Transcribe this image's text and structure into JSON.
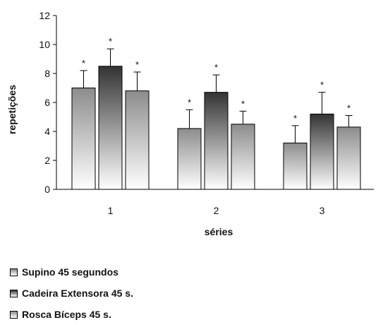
{
  "chart_data": {
    "type": "bar",
    "title": "",
    "xlabel": "séries",
    "ylabel": "repetições",
    "categories": [
      "1",
      "2",
      "3"
    ],
    "ylim": [
      0,
      12
    ],
    "yticks": [
      "0",
      "2",
      "4",
      "6",
      "8",
      "10",
      "12"
    ],
    "grid": false,
    "legend_position": "bottom-left",
    "significance_marker": "*",
    "series": [
      {
        "name": "Supino 45 segundos",
        "values": [
          7.0,
          4.2,
          3.2
        ],
        "errors": [
          1.2,
          1.3,
          1.2
        ],
        "fill": "light-gradient"
      },
      {
        "name": "Cadeira Extensora 45 s.",
        "values": [
          8.5,
          6.7,
          5.2
        ],
        "errors": [
          1.2,
          1.2,
          1.5
        ],
        "fill": "dark-gradient"
      },
      {
        "name": "Rosca Bíceps 45 s.",
        "values": [
          6.8,
          4.5,
          4.3
        ],
        "errors": [
          1.3,
          0.9,
          0.8
        ],
        "fill": "light-gradient"
      }
    ]
  }
}
